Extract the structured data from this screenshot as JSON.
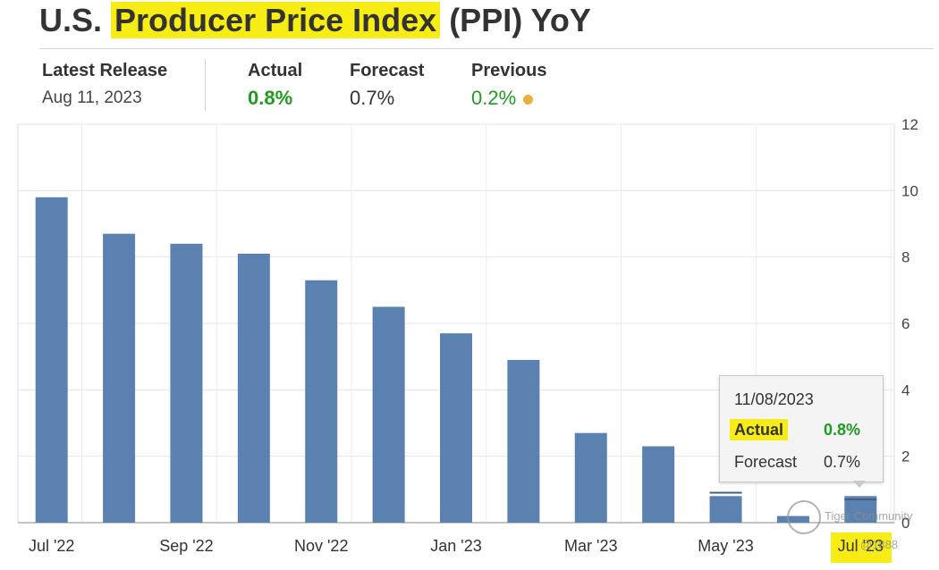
{
  "header": {
    "title_prefix": "U.S.",
    "title_highlight": "Producer Price Index",
    "title_suffix": "(PPI) YoY"
  },
  "stats": {
    "latest_release_label": "Latest Release",
    "latest_release_date": "Aug 11, 2023",
    "actual_label": "Actual",
    "actual_value": "0.8%",
    "forecast_label": "Forecast",
    "forecast_value": "0.7%",
    "previous_label": "Previous",
    "previous_value": "0.2%"
  },
  "tooltip": {
    "date": "11/08/2023",
    "actual_label": "Actual",
    "actual_value": "0.8%",
    "forecast_label": "Forecast",
    "forecast_value": "0.7%"
  },
  "watermark": {
    "text": "Tiger Community",
    "user": "@1888"
  },
  "colors": {
    "bar": "#5b81b1",
    "positive": "#1f9b1f",
    "highlight": "#f7ec13",
    "previous_dot": "#e8b13a"
  },
  "chart_data": {
    "type": "bar",
    "categories": [
      "Jul '22",
      "Aug '22",
      "Sep '22",
      "Oct '22",
      "Nov '22",
      "Dec '22",
      "Jan '23",
      "Feb '23",
      "Mar '23",
      "Apr '23",
      "May '23",
      "Jun '23",
      "Jul '23"
    ],
    "values": [
      9.8,
      8.7,
      8.4,
      8.1,
      7.3,
      6.5,
      5.7,
      4.9,
      2.7,
      2.3,
      0.8,
      0.2,
      0.8
    ],
    "forecast_markers": [
      {
        "category": "May '23",
        "value": 0.9
      },
      {
        "category": "Jul '23",
        "value": 0.7
      }
    ],
    "x_tick_labels": [
      "Jul '22",
      "Sep '22",
      "Nov '22",
      "Jan '23",
      "Mar '23",
      "May '23",
      "Jul '23"
    ],
    "y_ticks": [
      0,
      2,
      4,
      6,
      8,
      10,
      12
    ],
    "ylim": [
      0,
      12
    ],
    "y_axis_position": "right",
    "grid": true,
    "highlighted_tick": "Jul '23"
  }
}
